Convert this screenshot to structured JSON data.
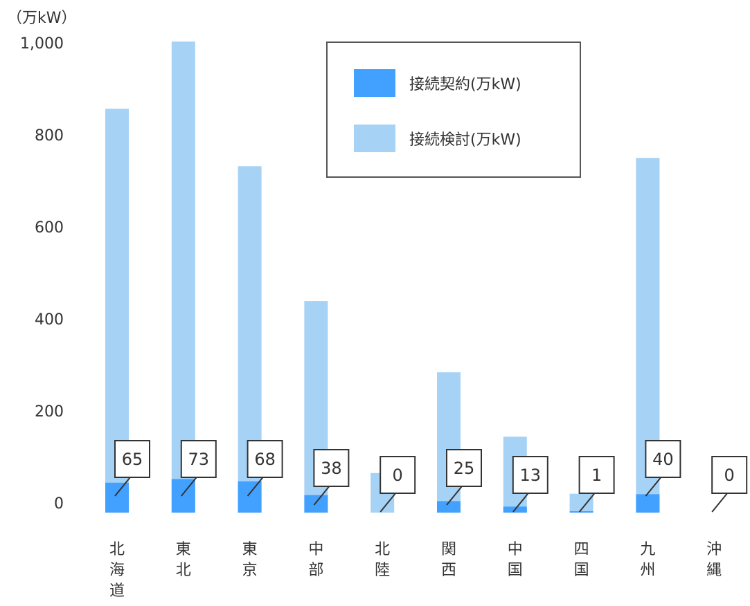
{
  "chart_data": {
    "type": "bar",
    "unit_label": "（万kW）",
    "categories": [
      "北海道",
      "東北",
      "東京",
      "中部",
      "北陸",
      "関西",
      "中国",
      "四国",
      "九州",
      "沖縄"
    ],
    "series": [
      {
        "name": "接続契約(万kW)",
        "color": "#42a0ff",
        "values": [
          65,
          73,
          68,
          38,
          0,
          25,
          13,
          1,
          40,
          0
        ]
      },
      {
        "name": "接続検討(万kW)",
        "color": "#a6d2f5",
        "values": [
          878,
          1024,
          753,
          460,
          86,
          305,
          165,
          41,
          771,
          0
        ]
      }
    ],
    "data_labels": [
      "65",
      "73",
      "68",
      "38",
      "0",
      "25",
      "13",
      "1",
      "40",
      "0"
    ],
    "yticks": [
      {
        "v": 0,
        "t": "0"
      },
      {
        "v": 200,
        "t": "200"
      },
      {
        "v": 400,
        "t": "400"
      },
      {
        "v": 600,
        "t": "600"
      },
      {
        "v": 800,
        "t": "800"
      },
      {
        "v": 1000,
        "t": "1,000"
      }
    ],
    "ylim": [
      0,
      1000
    ],
    "legend_position": "top-right",
    "grid": false
  }
}
